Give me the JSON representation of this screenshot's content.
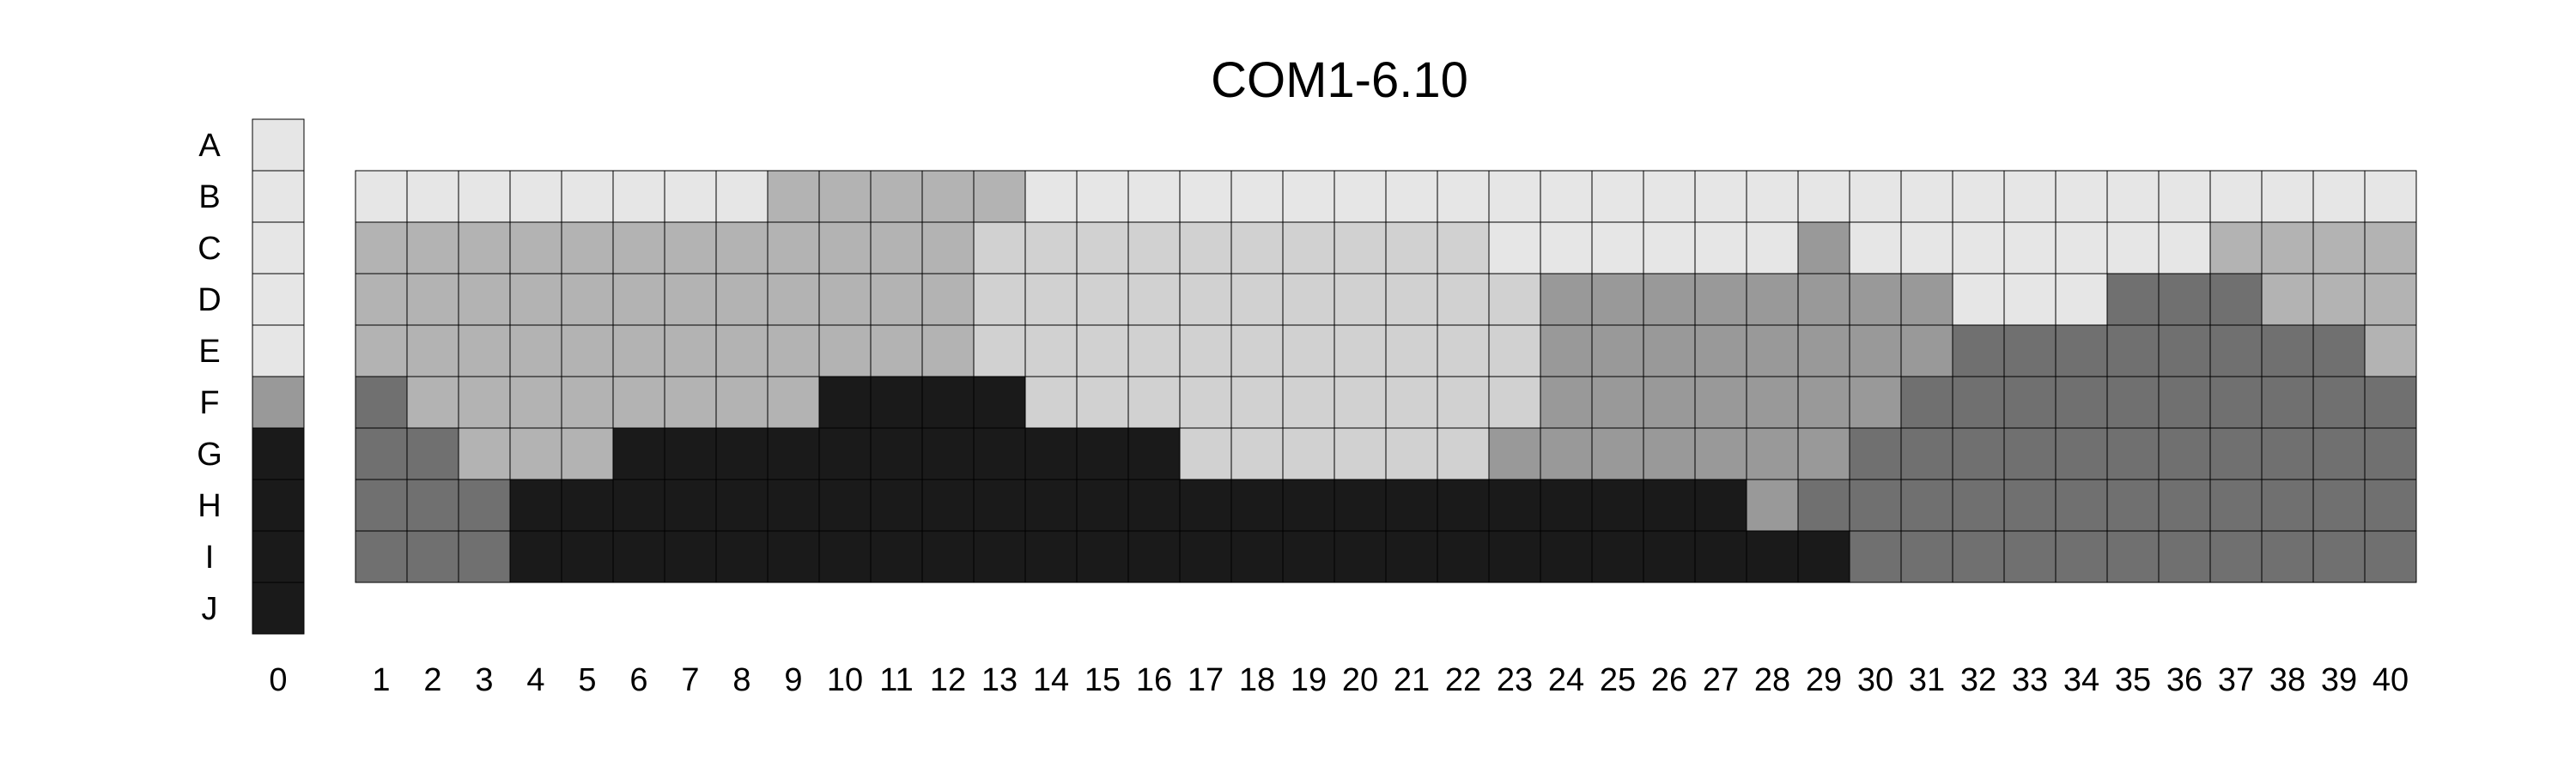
{
  "chart_data": {
    "type": "heatmap",
    "title": "COM1-6.10",
    "rows": [
      "A",
      "B",
      "C",
      "D",
      "E",
      "F",
      "G",
      "H",
      "I",
      "J"
    ],
    "columns": [
      "1",
      "2",
      "3",
      "4",
      "5",
      "6",
      "7",
      "8",
      "9",
      "10",
      "11",
      "12",
      "13",
      "14",
      "15",
      "16",
      "17",
      "18",
      "19",
      "20",
      "21",
      "22",
      "23",
      "24",
      "25",
      "26",
      "27",
      "28",
      "29",
      "30",
      "31",
      "32",
      "33",
      "34",
      "35",
      "36",
      "37",
      "38",
      "39",
      "40"
    ],
    "reference_label": "0",
    "reference_column": [
      1,
      1,
      1,
      1,
      1,
      3,
      5,
      5,
      5,
      5
    ],
    "grid_rows": [
      "B",
      "C",
      "D",
      "E",
      "F",
      "G",
      "H",
      "I"
    ],
    "grid": [
      [
        1,
        1,
        1,
        1,
        1,
        1,
        1,
        1,
        2,
        2,
        2,
        2,
        2,
        1,
        1,
        1,
        1,
        1,
        1,
        1,
        1,
        1,
        1,
        1,
        1,
        1,
        1,
        1,
        1,
        1,
        1,
        1,
        1,
        1,
        1,
        1,
        1,
        1,
        1,
        1
      ],
      [
        2,
        2,
        2,
        2,
        2,
        2,
        2,
        2,
        2,
        2,
        2,
        2,
        6,
        6,
        6,
        6,
        6,
        6,
        6,
        6,
        6,
        6,
        1,
        1,
        1,
        1,
        1,
        1,
        3,
        1,
        1,
        1,
        1,
        1,
        1,
        1,
        2,
        2,
        2,
        2
      ],
      [
        2,
        2,
        2,
        2,
        2,
        2,
        2,
        2,
        2,
        2,
        2,
        2,
        6,
        6,
        6,
        6,
        6,
        6,
        6,
        6,
        6,
        6,
        6,
        3,
        3,
        3,
        3,
        3,
        3,
        3,
        3,
        1,
        1,
        1,
        4,
        4,
        4,
        2,
        2,
        2
      ],
      [
        2,
        2,
        2,
        2,
        2,
        2,
        2,
        2,
        2,
        2,
        2,
        2,
        6,
        6,
        6,
        6,
        6,
        6,
        6,
        6,
        6,
        6,
        6,
        3,
        3,
        3,
        3,
        3,
        3,
        3,
        3,
        4,
        4,
        4,
        4,
        4,
        4,
        4,
        4,
        2
      ],
      [
        4,
        2,
        2,
        2,
        2,
        2,
        2,
        2,
        2,
        5,
        5,
        5,
        5,
        6,
        6,
        6,
        6,
        6,
        6,
        6,
        6,
        6,
        6,
        3,
        3,
        3,
        3,
        3,
        3,
        3,
        4,
        4,
        4,
        4,
        4,
        4,
        4,
        4,
        4,
        4
      ],
      [
        4,
        4,
        2,
        2,
        2,
        5,
        5,
        5,
        5,
        5,
        5,
        5,
        5,
        5,
        5,
        5,
        6,
        6,
        6,
        6,
        6,
        6,
        3,
        3,
        3,
        3,
        3,
        3,
        3,
        4,
        4,
        4,
        4,
        4,
        4,
        4,
        4,
        4,
        4,
        4
      ],
      [
        4,
        4,
        4,
        5,
        5,
        5,
        5,
        5,
        5,
        5,
        5,
        5,
        5,
        5,
        5,
        5,
        5,
        5,
        5,
        5,
        5,
        5,
        5,
        5,
        5,
        5,
        5,
        3,
        4,
        4,
        4,
        4,
        4,
        4,
        4,
        4,
        4,
        4,
        4,
        4
      ],
      [
        4,
        4,
        4,
        5,
        5,
        5,
        5,
        5,
        5,
        5,
        5,
        5,
        5,
        5,
        5,
        5,
        5,
        5,
        5,
        5,
        5,
        5,
        5,
        5,
        5,
        5,
        5,
        5,
        5,
        4,
        4,
        4,
        4,
        4,
        4,
        4,
        4,
        4,
        4,
        4
      ]
    ],
    "levels": {
      "1": "#e6e6e6",
      "2": "#b3b3b3",
      "3": "#999999",
      "4": "#707070",
      "5": "#1a1a1a",
      "6": "#d1d1d1"
    },
    "grid_lines": true,
    "legend": "none"
  }
}
